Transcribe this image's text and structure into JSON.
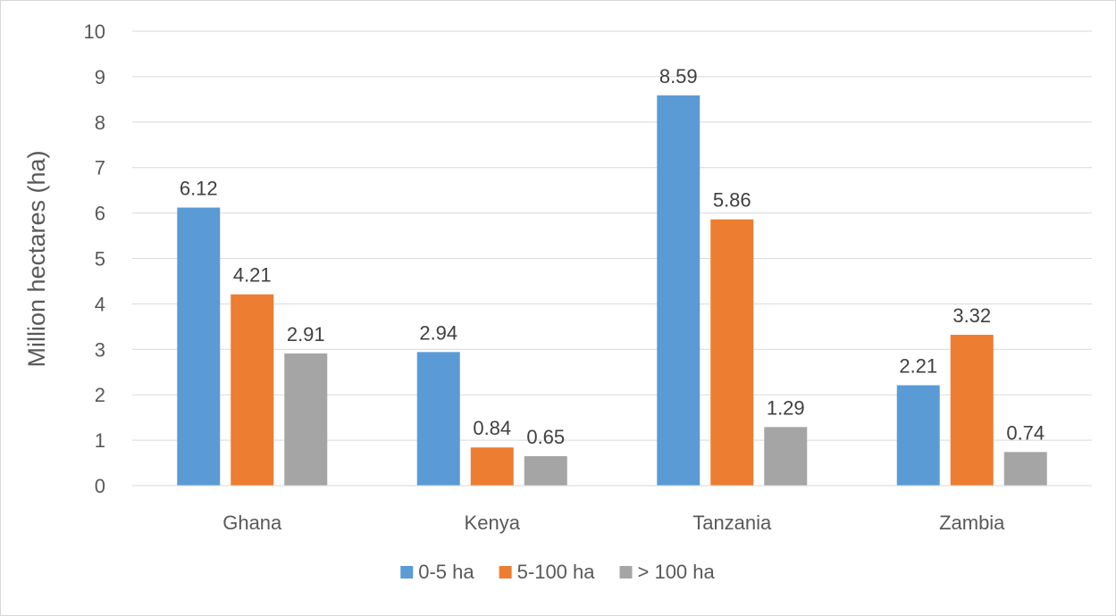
{
  "chart_data": {
    "type": "bar",
    "title": "",
    "xlabel": "",
    "ylabel": "Million hectares (ha)",
    "ylim": [
      0,
      10
    ],
    "yticks": [
      0,
      1,
      2,
      3,
      4,
      5,
      6,
      7,
      8,
      9,
      10
    ],
    "grid": true,
    "legend_position": "bottom",
    "categories": [
      "Ghana",
      "Kenya",
      "Tanzania",
      "Zambia"
    ],
    "series": [
      {
        "name": "0-5 ha",
        "color": "#5b9bd5",
        "values": [
          6.12,
          2.94,
          8.59,
          2.21
        ]
      },
      {
        "name": "5-100 ha",
        "color": "#ed7d31",
        "values": [
          4.21,
          0.84,
          5.86,
          3.32
        ]
      },
      {
        "name": "> 100 ha",
        "color": "#a5a5a5",
        "values": [
          2.91,
          0.65,
          1.29,
          0.74
        ]
      }
    ]
  }
}
